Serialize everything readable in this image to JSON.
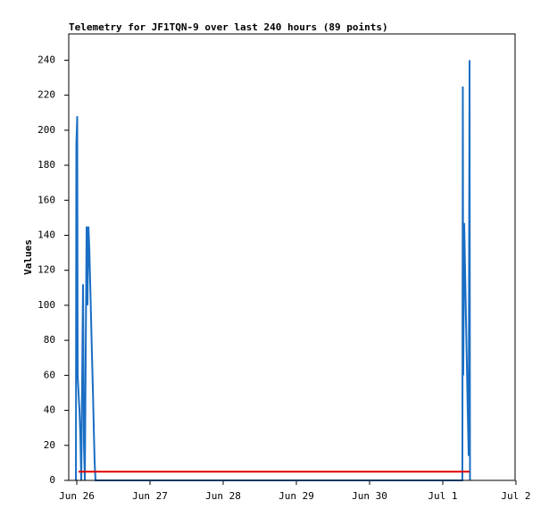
{
  "chart_data": {
    "type": "line",
    "title": "Telemetry for JF1TQN-9 over last 240 hours (89 points)",
    "y_label": "Values",
    "xlim": [
      -0.11,
      5.988
    ],
    "xticks": [
      {
        "value": 0,
        "label": "Jun 26"
      },
      {
        "value": 1,
        "label": "Jun 27"
      },
      {
        "value": 2,
        "label": "Jun 28"
      },
      {
        "value": 3,
        "label": "Jun 29"
      },
      {
        "value": 4,
        "label": "Jun 30"
      },
      {
        "value": 5,
        "label": "Jul 1"
      },
      {
        "value": 6,
        "label": "Jul 2"
      }
    ],
    "ylim": [
      0,
      255
    ],
    "yticks": [
      0,
      20,
      40,
      60,
      80,
      100,
      120,
      140,
      160,
      180,
      200,
      220,
      240
    ],
    "series": [
      {
        "color": "#1a6ec4",
        "x": [
          -0.012,
          -0.006,
          0.006,
          0.012,
          0.024,
          0.037,
          0.049,
          0.061,
          0.085,
          0.098,
          0.11,
          0.134,
          0.146,
          0.159,
          0.171,
          0.183,
          0.195,
          0.207,
          0.22,
          0.232,
          0.244,
          0.256,
          5.268,
          5.274,
          5.28,
          5.293,
          5.305,
          5.317,
          5.329,
          5.341,
          5.354,
          5.366,
          5.372
        ],
        "values": [
          0,
          192,
          208,
          60,
          50,
          40,
          25,
          0,
          112,
          20,
          0,
          145,
          100,
          145,
          133,
          113,
          93,
          72,
          52,
          30,
          10,
          0,
          0,
          225,
          60,
          147,
          120,
          93,
          67,
          40,
          14,
          240,
          0
        ]
      },
      {
        "color": "#e00000",
        "x": [
          0.024,
          5.366
        ],
        "values": [
          5,
          5
        ]
      }
    ]
  }
}
